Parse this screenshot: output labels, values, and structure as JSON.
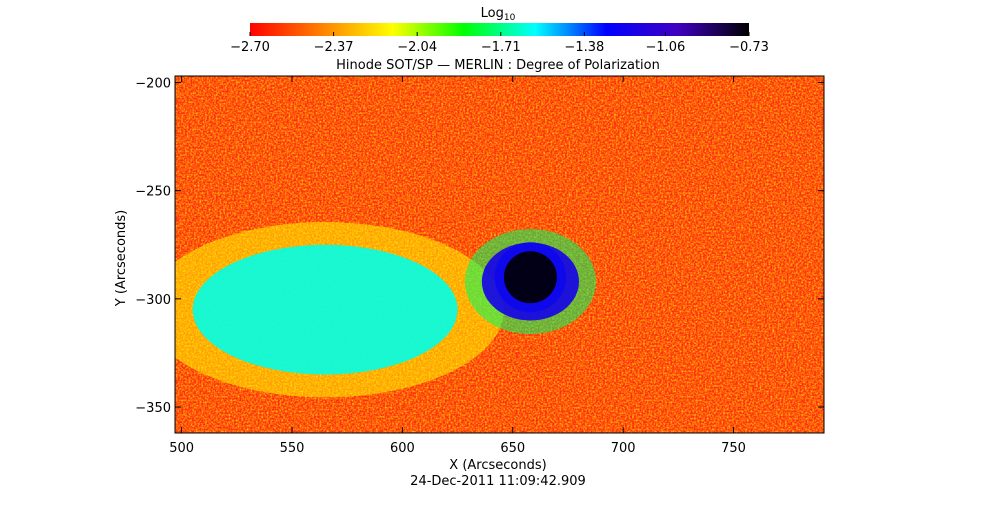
{
  "chart_data": {
    "type": "heatmap",
    "title": "Hinode SOT/SP — MERLIN : Degree of Polarization",
    "xlabel": "X (Arcseconds)",
    "ylabel": "Y (Arcseconds)",
    "timestamp": "24-Dec-2011 11:09:42.909",
    "xlim": [
      497,
      791
    ],
    "ylim": [
      -362,
      -197
    ],
    "x_ticks": [
      {
        "value": 500,
        "label": "500"
      },
      {
        "value": 550,
        "label": "550"
      },
      {
        "value": 600,
        "label": "600"
      },
      {
        "value": 650,
        "label": "650"
      },
      {
        "value": 700,
        "label": "700"
      },
      {
        "value": 750,
        "label": "750"
      }
    ],
    "y_ticks": [
      {
        "value": -200,
        "label": "−200"
      },
      {
        "value": -250,
        "label": "−250"
      },
      {
        "value": -300,
        "label": "−300"
      },
      {
        "value": -350,
        "label": "−350"
      }
    ],
    "colorbar": {
      "title_base": "Log",
      "title_sub": "10",
      "range": [
        -2.7,
        -0.73
      ],
      "ticks": [
        {
          "value": -2.7,
          "label": "−2.70"
        },
        {
          "value": -2.37,
          "label": "−2.37"
        },
        {
          "value": -2.04,
          "label": "−2.04"
        },
        {
          "value": -1.71,
          "label": "−1.71"
        },
        {
          "value": -1.38,
          "label": "−1.38"
        },
        {
          "value": -1.06,
          "label": "−1.06"
        },
        {
          "value": -0.73,
          "label": "−0.73"
        }
      ],
      "colormap": [
        "#ff0000",
        "#ff8000",
        "#ffff00",
        "#00ff00",
        "#00ffff",
        "#0000ff",
        "#4000c0",
        "#000000"
      ]
    },
    "features": [
      {
        "name": "sunspot umbra",
        "x": 658,
        "y": -290,
        "rx": 12,
        "ry": 12,
        "level": -0.73
      },
      {
        "name": "sunspot penumbra",
        "x": 658,
        "y": -292,
        "rx": 22,
        "ry": 18,
        "level": -1.2
      },
      {
        "name": "plage region",
        "x": 565,
        "y": -305,
        "rx": 60,
        "ry": 30,
        "level": -1.6
      }
    ]
  }
}
